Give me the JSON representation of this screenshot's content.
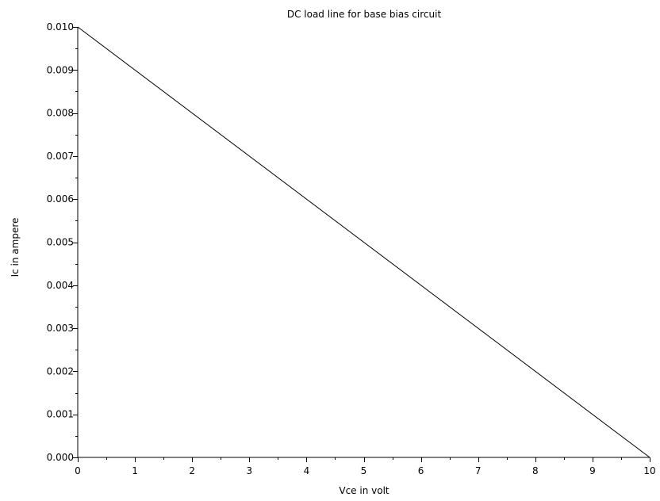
{
  "chart_data": {
    "type": "line",
    "title": "DC load line for base bias circuit",
    "xlabel": "Vce in volt",
    "ylabel": "Ic in ampere",
    "xlim": [
      0,
      10
    ],
    "ylim": [
      0,
      0.01
    ],
    "x_ticks": [
      "0",
      "1",
      "2",
      "3",
      "4",
      "5",
      "6",
      "7",
      "8",
      "9",
      "10"
    ],
    "y_ticks": [
      "0.000",
      "0.001",
      "0.002",
      "0.003",
      "0.004",
      "0.005",
      "0.006",
      "0.007",
      "0.008",
      "0.009",
      "0.010"
    ],
    "grid": false,
    "series": [
      {
        "x": [
          0,
          10
        ],
        "y": [
          0.01,
          0.0
        ],
        "color": "#000000"
      }
    ]
  }
}
